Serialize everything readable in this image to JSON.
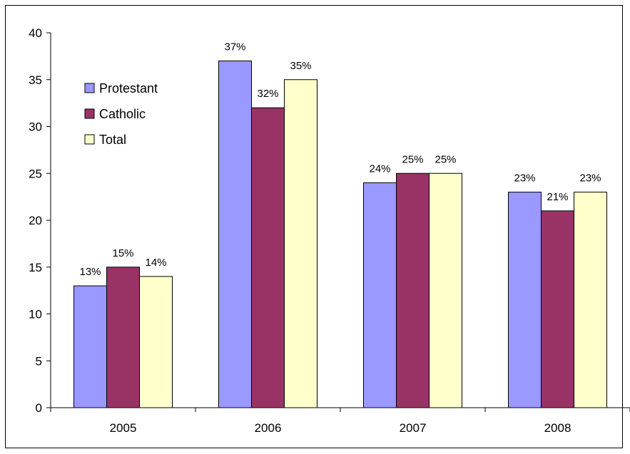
{
  "chart_data": {
    "type": "bar",
    "categories": [
      "2005",
      "2006",
      "2007",
      "2008"
    ],
    "series": [
      {
        "name": "Protestant",
        "values": [
          13,
          37,
          24,
          23
        ],
        "labels": [
          "13%",
          "37%",
          "24%",
          "23%"
        ],
        "color": "#9999ff"
      },
      {
        "name": "Catholic",
        "values": [
          15,
          32,
          25,
          21
        ],
        "labels": [
          "15%",
          "32%",
          "25%",
          "21%"
        ],
        "color": "#993366"
      },
      {
        "name": "Total",
        "values": [
          14,
          35,
          25,
          23
        ],
        "labels": [
          "14%",
          "35%",
          "25%",
          "23%"
        ],
        "color": "#ffffcc"
      }
    ],
    "yticks": [
      0,
      5,
      10,
      15,
      20,
      25,
      30,
      35,
      40
    ],
    "ylim": [
      0,
      40
    ],
    "grid": false,
    "legend_position": "top-left"
  }
}
